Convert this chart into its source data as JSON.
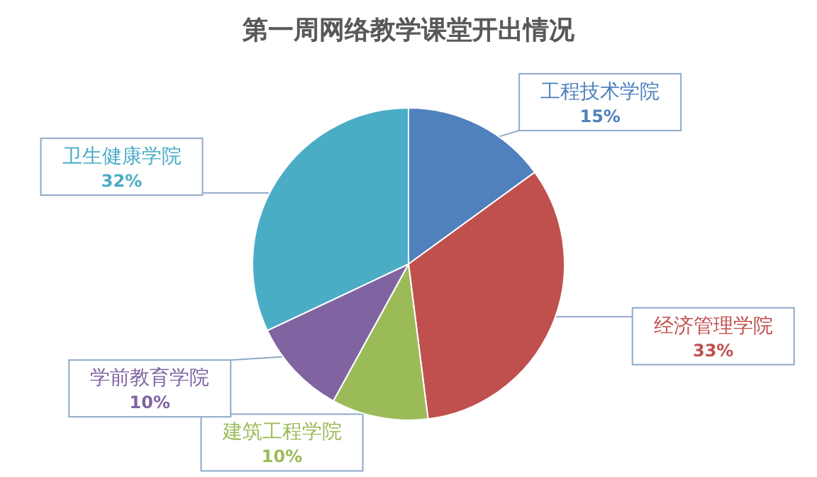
{
  "chart_data": {
    "type": "pie",
    "title": "第一周网络教学课堂开出情况",
    "categories": [
      "工程技术学院",
      "经济管理学院",
      "建筑工程学院",
      "学前教育学院",
      "卫生健康学院"
    ],
    "values": [
      15,
      33,
      10,
      10,
      32
    ],
    "value_labels": [
      "15%",
      "33%",
      "10%",
      "10%",
      "32%"
    ],
    "colors": [
      "#4f81bd",
      "#c0504d",
      "#9bbb59",
      "#8064a2",
      "#4bacc6"
    ],
    "legend": false
  }
}
